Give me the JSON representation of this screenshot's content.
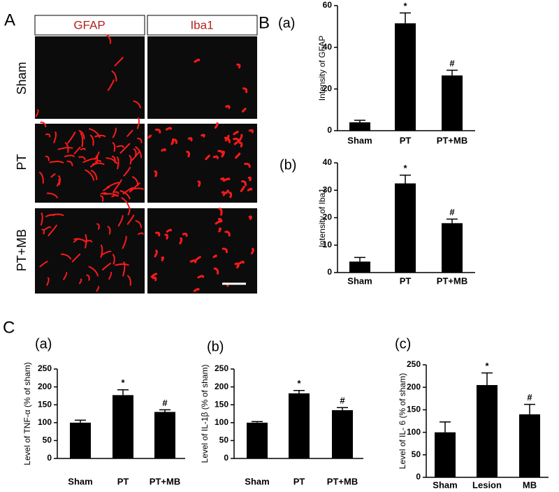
{
  "panel_a": {
    "label": "A",
    "columns": [
      "GFAP",
      "Iba1"
    ],
    "rows": [
      "Sham",
      "PT",
      "PT+MB"
    ]
  },
  "panel_b": {
    "label": "B"
  },
  "panel_c": {
    "label": "C"
  },
  "chart_data": [
    {
      "type": "bar",
      "title": "(a)",
      "y_label": "Intensity of GFAP",
      "categories": [
        "Sham",
        "PT",
        "PT+MB"
      ],
      "values": [
        4,
        51.5,
        26.5
      ],
      "errors": [
        1,
        5,
        2.5
      ],
      "markers": [
        null,
        "*",
        "#"
      ],
      "color": "#000000",
      "ylim": [
        0,
        60
      ],
      "yticks": [
        0,
        20,
        40,
        60
      ]
    },
    {
      "type": "bar",
      "title": "(b)",
      "y_label": "Intensity of Iba1",
      "categories": [
        "Sham",
        "PT",
        "PT+MB"
      ],
      "values": [
        4,
        32.5,
        18
      ],
      "errors": [
        1.5,
        3,
        1.5
      ],
      "markers": [
        null,
        "*",
        "#"
      ],
      "color": "#000000",
      "ylim": [
        0,
        40
      ],
      "yticks": [
        0,
        10,
        20,
        30,
        40
      ]
    },
    {
      "type": "bar",
      "title": "(a)",
      "y_label": "Level of TNF-α (% of sham)",
      "categories": [
        "Sham",
        "PT",
        "PT+MB"
      ],
      "values": [
        100,
        177,
        130
      ],
      "errors": [
        7,
        15,
        6
      ],
      "markers": [
        null,
        "*",
        "#"
      ],
      "color": "#000000",
      "ylim": [
        0,
        250
      ],
      "yticks": [
        0,
        50,
        100,
        150,
        200,
        250
      ]
    },
    {
      "type": "bar",
      "title": "(b)",
      "y_label": "Level of IL-1β (% of sham)",
      "categories": [
        "Sham",
        "PT",
        "PT+MB"
      ],
      "values": [
        100,
        182,
        135
      ],
      "errors": [
        3,
        8,
        7
      ],
      "markers": [
        null,
        "*",
        "#"
      ],
      "color": "#000000",
      "ylim": [
        0,
        250
      ],
      "yticks": [
        0,
        50,
        100,
        150,
        200,
        250
      ]
    },
    {
      "type": "bar",
      "title": "(c)",
      "y_label": "Level of IL- 6 (% of sham)",
      "categories": [
        "Sham",
        "Lesion",
        "MB"
      ],
      "values": [
        100,
        205,
        140
      ],
      "errors": [
        23,
        27,
        22
      ],
      "markers": [
        null,
        "*",
        "#"
      ],
      "color": "#000000",
      "ylim": [
        0,
        250
      ],
      "yticks": [
        0,
        50,
        100,
        150,
        200,
        250
      ]
    }
  ]
}
